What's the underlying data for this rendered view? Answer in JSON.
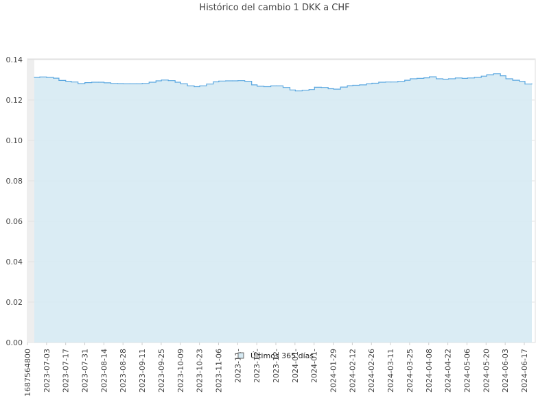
{
  "chart_data": {
    "type": "area",
    "title": "Histórico del cambio 1 DKK a CHF",
    "xlabel": "",
    "ylabel": "",
    "ylim": [
      0,
      0.14
    ],
    "yticks": [
      "0.00",
      "0.02",
      "0.04",
      "0.06",
      "0.08",
      "0.10",
      "0.12",
      "0.14"
    ],
    "xtick_labels": [
      "1687564800",
      "2023-07-03",
      "2023-07-17",
      "2023-07-31",
      "2023-08-14",
      "2023-08-28",
      "2023-09-11",
      "2023-09-25",
      "2023-10-09",
      "2023-10-23",
      "2023-11-06",
      "2023-11-",
      "2023-12-",
      "2023-12-",
      "2024-01-",
      "2024-01-",
      "2024-01-29",
      "2024-02-12",
      "2024-02-26",
      "2024-03-11",
      "2024-03-25",
      "2024-04-08",
      "2024-04-22",
      "2024-05-06",
      "2024-05-20",
      "2024-06-03",
      "2024-06-17"
    ],
    "legend_position": "bottom-center",
    "grid": true,
    "series": [
      {
        "name": "Últimos 365 días",
        "color": "#5aa7e0",
        "fill": "#d6eaf3",
        "x": [
          "2023-06-24",
          "2023-06-28",
          "2023-07-03",
          "2023-07-08",
          "2023-07-12",
          "2023-07-17",
          "2023-07-21",
          "2023-07-26",
          "2023-07-31",
          "2023-08-05",
          "2023-08-10",
          "2023-08-14",
          "2023-08-19",
          "2023-08-24",
          "2023-08-28",
          "2023-09-02",
          "2023-09-07",
          "2023-09-11",
          "2023-09-16",
          "2023-09-21",
          "2023-09-25",
          "2023-09-30",
          "2023-10-05",
          "2023-10-09",
          "2023-10-14",
          "2023-10-19",
          "2023-10-23",
          "2023-10-28",
          "2023-11-02",
          "2023-11-06",
          "2023-11-11",
          "2023-11-16",
          "2023-11-20",
          "2023-11-25",
          "2023-11-30",
          "2023-12-04",
          "2023-12-09",
          "2023-12-14",
          "2023-12-18",
          "2023-12-23",
          "2023-12-28",
          "2024-01-01",
          "2024-01-06",
          "2024-01-11",
          "2024-01-15",
          "2024-01-20",
          "2024-01-25",
          "2024-01-29",
          "2024-02-03",
          "2024-02-08",
          "2024-02-12",
          "2024-02-17",
          "2024-02-22",
          "2024-02-26",
          "2024-03-02",
          "2024-03-07",
          "2024-03-11",
          "2024-03-16",
          "2024-03-21",
          "2024-03-25",
          "2024-03-30",
          "2024-04-04",
          "2024-04-08",
          "2024-04-13",
          "2024-04-18",
          "2024-04-22",
          "2024-04-27",
          "2024-05-02",
          "2024-05-06",
          "2024-05-11",
          "2024-05-16",
          "2024-05-20",
          "2024-05-25",
          "2024-05-30",
          "2024-06-03",
          "2024-06-08",
          "2024-06-13",
          "2024-06-17",
          "2024-06-22"
        ],
        "values": [
          0.1312,
          0.1314,
          0.1312,
          0.1308,
          0.1297,
          0.1293,
          0.1289,
          0.1281,
          0.1286,
          0.1288,
          0.1288,
          0.1285,
          0.1282,
          0.1281,
          0.128,
          0.128,
          0.128,
          0.1282,
          0.1288,
          0.1295,
          0.1299,
          0.1296,
          0.1288,
          0.128,
          0.127,
          0.1266,
          0.127,
          0.1279,
          0.129,
          0.1294,
          0.1295,
          0.1295,
          0.1296,
          0.1293,
          0.1275,
          0.1268,
          0.1266,
          0.127,
          0.127,
          0.1262,
          0.125,
          0.1245,
          0.1248,
          0.1252,
          0.1263,
          0.1262,
          0.1256,
          0.1254,
          0.1264,
          0.1271,
          0.1273,
          0.1275,
          0.128,
          0.1283,
          0.1288,
          0.1289,
          0.1289,
          0.1292,
          0.1298,
          0.1305,
          0.1307,
          0.131,
          0.1315,
          0.1305,
          0.1303,
          0.1305,
          0.1309,
          0.1307,
          0.1309,
          0.1312,
          0.1318,
          0.1325,
          0.133,
          0.132,
          0.1305,
          0.1298,
          0.1292,
          0.1279,
          0.128
        ]
      }
    ]
  }
}
